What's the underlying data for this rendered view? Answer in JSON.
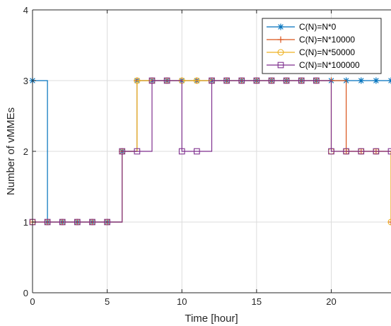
{
  "chart_data": {
    "type": "line",
    "step": true,
    "title": "",
    "xlabel": "Time [hour]",
    "ylabel": "Number of vMMEs",
    "xlim": [
      0,
      24
    ],
    "ylim": [
      0,
      4
    ],
    "xticks": [
      0,
      5,
      10,
      15,
      20
    ],
    "yticks": [
      0,
      1,
      2,
      3,
      4
    ],
    "grid": true,
    "legend_position": "top-right",
    "x": [
      0,
      1,
      2,
      3,
      4,
      5,
      6,
      7,
      8,
      9,
      10,
      11,
      12,
      13,
      14,
      15,
      16,
      17,
      18,
      19,
      20,
      21,
      22,
      23,
      24
    ],
    "series": [
      {
        "name": "C(N)=N*0",
        "color": "#0072BD",
        "marker": "asterisk",
        "values": [
          3,
          1,
          1,
          1,
          1,
          1,
          2,
          3,
          3,
          3,
          3,
          3,
          3,
          3,
          3,
          3,
          3,
          3,
          3,
          3,
          3,
          3,
          3,
          3,
          3
        ]
      },
      {
        "name": "C(N)=N*10000",
        "color": "#D95319",
        "marker": "plus",
        "values": [
          1,
          1,
          1,
          1,
          1,
          1,
          2,
          3,
          3,
          3,
          3,
          3,
          3,
          3,
          3,
          3,
          3,
          3,
          3,
          3,
          3,
          2,
          2,
          2,
          1
        ]
      },
      {
        "name": "C(N)=N*50000",
        "color": "#EDB120",
        "marker": "circle",
        "values": [
          1,
          1,
          1,
          1,
          1,
          1,
          2,
          3,
          3,
          3,
          3,
          3,
          3,
          3,
          3,
          3,
          3,
          3,
          3,
          3,
          2,
          2,
          2,
          2,
          1
        ]
      },
      {
        "name": "C(N)=N*100000",
        "color": "#7E2F8E",
        "marker": "square",
        "values": [
          1,
          1,
          1,
          1,
          1,
          1,
          2,
          2,
          3,
          3,
          2,
          2,
          3,
          3,
          3,
          3,
          3,
          3,
          3,
          3,
          2,
          2,
          2,
          2,
          2
        ]
      }
    ]
  }
}
